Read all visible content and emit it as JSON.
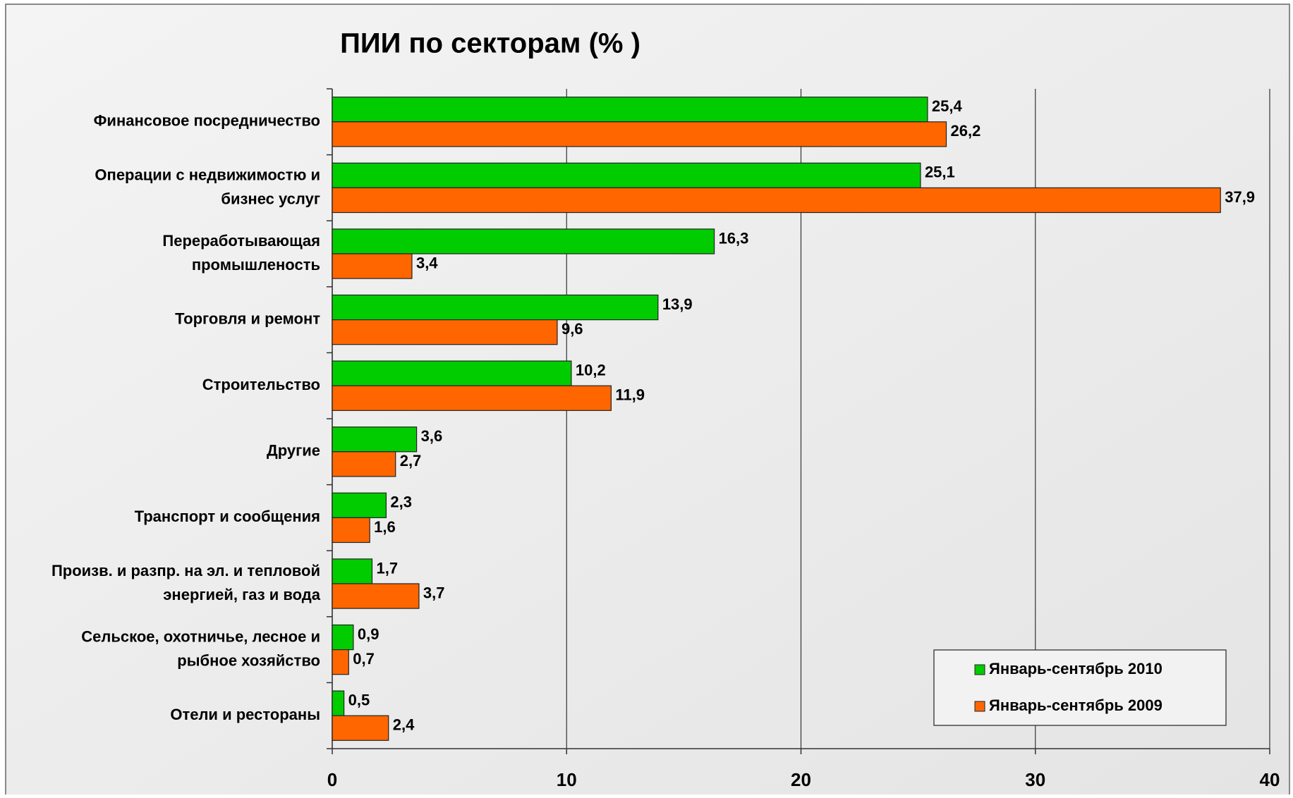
{
  "chart_data": {
    "type": "bar",
    "orientation": "horizontal",
    "title": "ПИИ по секторам (% )",
    "categories": [
      "Финансовое посредничество",
      "Операции с недвижимостю  и\nбизнес услуг",
      "Переработывающая\nпромышленость",
      "Торговля и ремонт",
      "Строительство",
      "Другие",
      "Транспорт и сообщения",
      "Произв. и разпр. на эл. и тепловой\nэнергией, газ и вода",
      "Сельское, охотничье, лесное и\nрыбное хозяйство",
      "Отели и рестораны"
    ],
    "series": [
      {
        "name": "Январь-сентябрь 2010",
        "color": "#00cc00",
        "values": [
          25.4,
          25.1,
          16.3,
          13.9,
          10.2,
          3.6,
          2.3,
          1.7,
          0.9,
          0.5
        ],
        "value_labels": [
          "25,4",
          "25,1",
          "16,3",
          "13,9",
          "10,2",
          "3,6",
          "2,3",
          "1,7",
          "0,9",
          "0,5"
        ]
      },
      {
        "name": "Январь-сентябрь 2009",
        "color": "#ff6600",
        "values": [
          26.2,
          37.9,
          3.4,
          9.6,
          11.9,
          2.7,
          1.6,
          3.7,
          0.7,
          2.4
        ],
        "value_labels": [
          "26,2",
          "37,9",
          "3,4",
          "9,6",
          "11,9",
          "2,7",
          "1,6",
          "3,7",
          "0,7",
          "2,4"
        ]
      }
    ],
    "xlim": [
      0,
      40
    ],
    "xticks": [
      0,
      10,
      20,
      30,
      40
    ],
    "grid": true,
    "legend": "lower right"
  }
}
